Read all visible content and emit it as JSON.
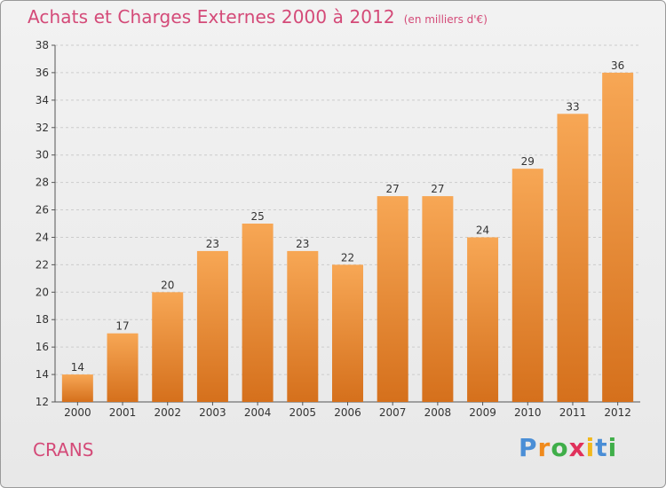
{
  "header": {
    "title": "Achats et Charges Externes 2000 à 2012",
    "unit": "(en milliers d'€)"
  },
  "footer": {
    "town": "CRANS",
    "logo_letters": [
      "P",
      "r",
      "o",
      "x",
      "i",
      "t",
      "i"
    ],
    "logo_colors": [
      "#4a8ed6",
      "#f08a1c",
      "#3fae49",
      "#e0315b",
      "#f2b81c",
      "#4a8ed6",
      "#3fae49"
    ]
  },
  "colors": {
    "bar_top": "#f7a755",
    "bar_bottom": "#d5701c",
    "grid": "#cccccc",
    "axis": "#555555",
    "text": "#333333",
    "title": "#d44a78"
  },
  "chart_data": {
    "type": "bar",
    "title": "Achats et Charges Externes 2000 à 2012",
    "subtitle": "(en milliers d'€)",
    "xlabel": "",
    "ylabel": "",
    "categories": [
      "2000",
      "2001",
      "2002",
      "2003",
      "2004",
      "2005",
      "2006",
      "2007",
      "2008",
      "2009",
      "2010",
      "2011",
      "2012"
    ],
    "values": [
      14,
      17,
      20,
      23,
      25,
      23,
      22,
      27,
      27,
      24,
      29,
      33,
      36
    ],
    "ylim": [
      12,
      38
    ],
    "yticks": [
      12,
      14,
      16,
      18,
      20,
      22,
      24,
      26,
      28,
      30,
      32,
      34,
      36,
      38
    ],
    "grid": true,
    "legend": "none"
  }
}
